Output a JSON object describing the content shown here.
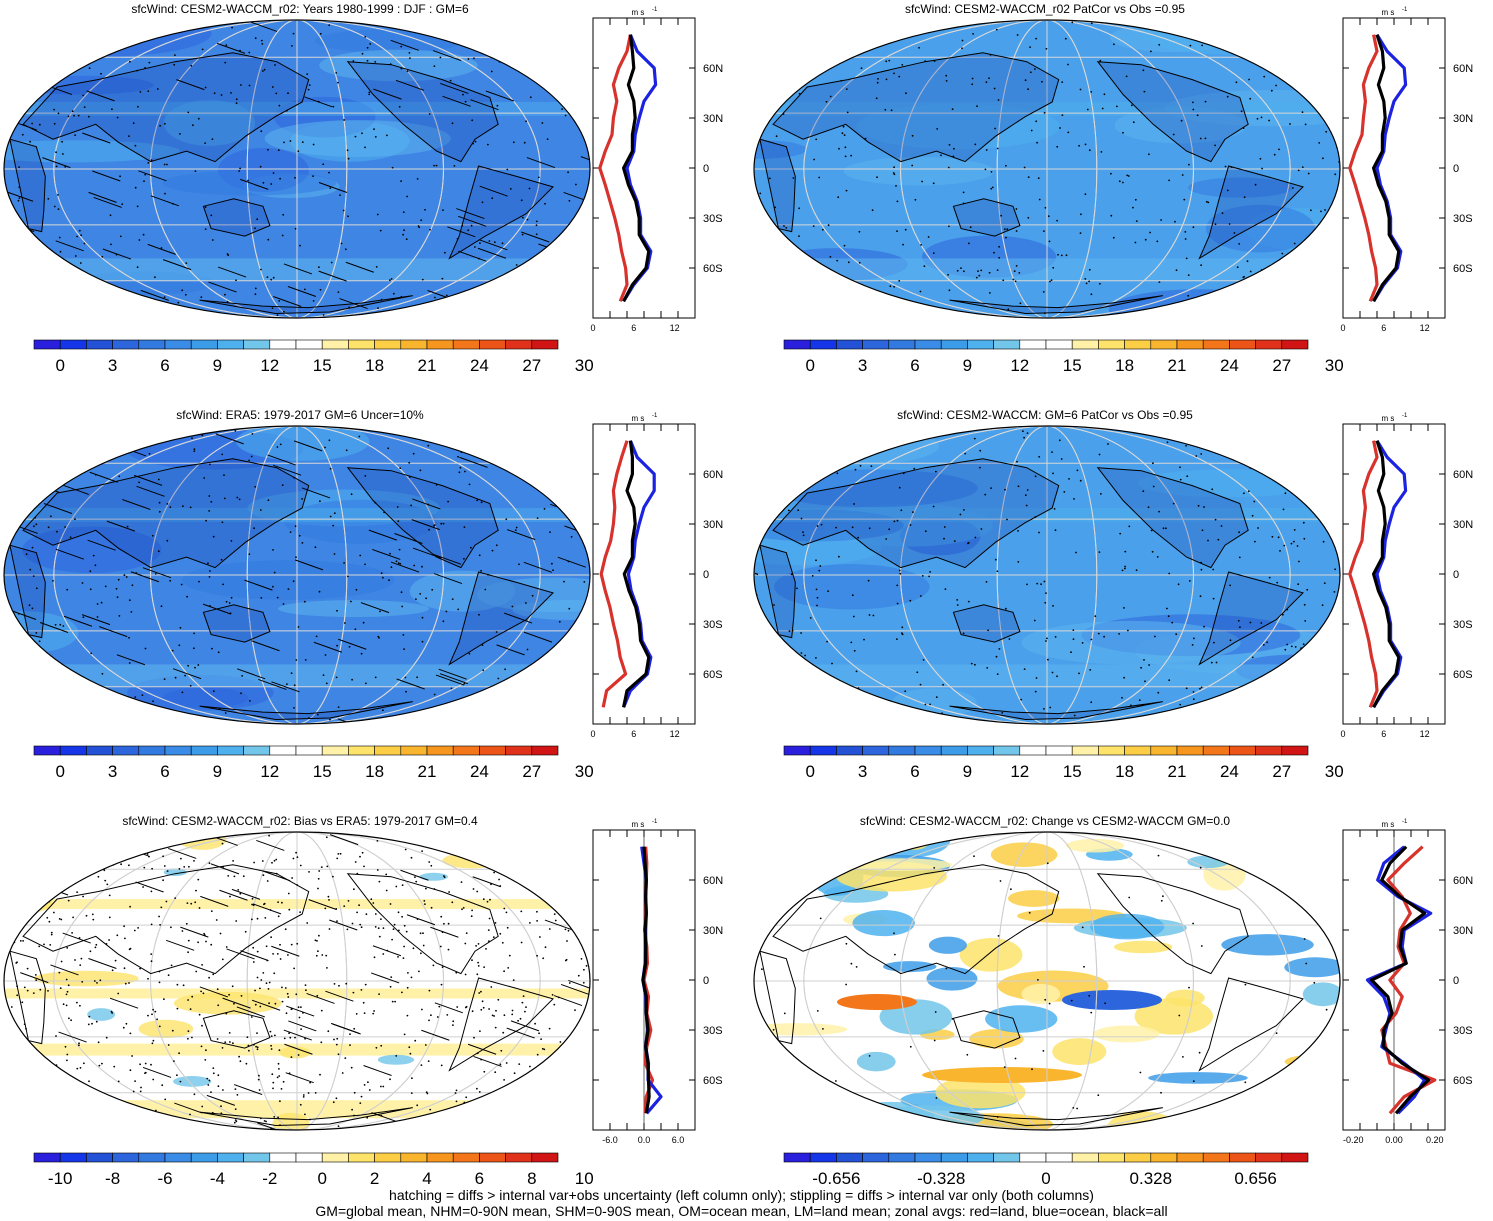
{
  "colors": {
    "abs_palette": [
      "#2a1fdc",
      "#1436e8",
      "#2452d6",
      "#2d66dc",
      "#337ae0",
      "#3a8ce6",
      "#3d9ce8",
      "#4eb1ee",
      "#72c6ea",
      "#ffffff",
      "#ffffff",
      "#fff2a8",
      "#fde36a",
      "#fcce45",
      "#fab52f",
      "#f7961f",
      "#f3771a",
      "#ec5517",
      "#e0321a",
      "#d11515"
    ],
    "diff_palette": [
      "#2a1fdc",
      "#1436e8",
      "#2452d6",
      "#2d66dc",
      "#337ae0",
      "#3a8ce6",
      "#3d9ce8",
      "#4eb1ee",
      "#72c6ea",
      "#ffffff",
      "#ffffff",
      "#fff2a8",
      "#fde36a",
      "#fcce45",
      "#fab52f",
      "#f7961f",
      "#f3771a",
      "#ec5517",
      "#e0321a",
      "#d11515"
    ],
    "land": "#d7322b",
    "ocean": "#1c23e0",
    "all": "#000000"
  },
  "panels": [
    {
      "id": "p1",
      "title": "sfcWind: CESM2-WACCM_r02: Years 1980-1999 : DJF : GM=6",
      "map_fill": "#3f86e4",
      "colorbar_labels": [
        "0",
        "3",
        "6",
        "9",
        "12",
        "15",
        "18",
        "21",
        "24",
        "27",
        "30"
      ],
      "zonal": {
        "unit": "m s",
        "unit_sup": "-1",
        "xticks": [
          "0",
          "6",
          "12"
        ],
        "xlim": [
          0,
          15
        ],
        "lat_labels": [
          "60N",
          "30N",
          "0",
          "30S",
          "60S"
        ],
        "lat": [
          80,
          70,
          60,
          50,
          40,
          30,
          20,
          10,
          0,
          -10,
          -20,
          -30,
          -40,
          -50,
          -60,
          -70,
          -80
        ],
        "land": [
          5.5,
          5.0,
          3.8,
          3.0,
          3.5,
          3.0,
          2.8,
          1.8,
          1.0,
          1.8,
          2.5,
          3.2,
          3.8,
          4.2,
          4.8,
          5.0,
          4.0
        ],
        "ocean": [
          5.5,
          6.5,
          9.0,
          9.2,
          7.5,
          6.8,
          6.2,
          6.0,
          5.0,
          5.5,
          6.5,
          7.0,
          7.0,
          8.5,
          8.0,
          6.0,
          4.5
        ],
        "all": [
          5.5,
          5.8,
          6.0,
          5.2,
          6.0,
          6.2,
          5.8,
          5.8,
          4.5,
          5.2,
          6.3,
          6.8,
          6.8,
          8.2,
          7.8,
          5.8,
          4.5
        ]
      }
    },
    {
      "id": "p2",
      "title": "sfcWind: CESM2-WACCM_r02 PatCor vs Obs =0.95",
      "map_fill": "#4aa0ea",
      "colorbar_labels": [
        "0",
        "3",
        "6",
        "9",
        "12",
        "15",
        "18",
        "21",
        "24",
        "27",
        "30"
      ],
      "zonal": {
        "unit": "m s",
        "unit_sup": "-1",
        "xticks": [
          "0",
          "6",
          "12"
        ],
        "xlim": [
          0,
          15
        ],
        "lat_labels": [
          "60N",
          "30N",
          "0",
          "30S",
          "60S"
        ],
        "lat": [
          80,
          70,
          60,
          50,
          40,
          30,
          20,
          10,
          0,
          -10,
          -20,
          -30,
          -40,
          -50,
          -60,
          -70,
          -80
        ],
        "land": [
          4.5,
          5.0,
          3.8,
          3.0,
          3.3,
          3.0,
          2.8,
          1.8,
          1.0,
          1.8,
          2.5,
          3.2,
          3.8,
          4.2,
          4.8,
          5.0,
          4.0
        ],
        "ocean": [
          5.0,
          6.5,
          9.0,
          9.2,
          7.5,
          6.8,
          6.2,
          6.0,
          5.0,
          5.5,
          6.5,
          7.0,
          7.0,
          8.5,
          8.0,
          6.0,
          4.5
        ],
        "all": [
          5.0,
          5.8,
          6.0,
          5.2,
          6.0,
          6.2,
          5.8,
          5.8,
          4.5,
          5.2,
          6.3,
          6.8,
          6.8,
          8.2,
          7.8,
          5.8,
          4.5
        ]
      }
    },
    {
      "id": "p3",
      "title": "sfcWind: ERA5: 1979-2017 GM=6 Uncer=10%",
      "map_fill": "#3f86e4",
      "colorbar_labels": [
        "0",
        "3",
        "6",
        "9",
        "12",
        "15",
        "18",
        "21",
        "24",
        "27",
        "30"
      ],
      "zonal": {
        "unit": "m s",
        "unit_sup": "-1",
        "xticks": [
          "0",
          "6",
          "12"
        ],
        "xlim": [
          0,
          15
        ],
        "lat_labels": [
          "60N",
          "30N",
          "0",
          "30S",
          "60S"
        ],
        "lat": [
          80,
          70,
          60,
          50,
          40,
          30,
          20,
          10,
          0,
          -10,
          -20,
          -30,
          -40,
          -50,
          -60,
          -70,
          -80
        ],
        "land": [
          5.0,
          4.2,
          3.5,
          3.0,
          3.2,
          3.0,
          2.6,
          1.8,
          1.2,
          1.8,
          2.5,
          3.0,
          3.6,
          4.0,
          4.8,
          2.0,
          1.5
        ],
        "ocean": [
          5.5,
          6.5,
          9.0,
          9.0,
          7.5,
          6.8,
          6.2,
          6.0,
          5.2,
          5.6,
          6.5,
          7.0,
          7.2,
          8.5,
          8.0,
          5.5,
          4.5
        ],
        "all": [
          5.5,
          5.8,
          5.8,
          5.0,
          6.0,
          6.2,
          5.8,
          5.8,
          4.6,
          5.3,
          6.3,
          6.8,
          7.0,
          8.2,
          7.8,
          5.0,
          4.5
        ]
      }
    },
    {
      "id": "p4",
      "title": "sfcWind: CESM2-WACCM: GM=6 PatCor vs Obs =0.95",
      "map_fill": "#4aa0ea",
      "colorbar_labels": [
        "0",
        "3",
        "6",
        "9",
        "12",
        "15",
        "18",
        "21",
        "24",
        "27",
        "30"
      ],
      "zonal": {
        "unit": "m s",
        "unit_sup": "-1",
        "xticks": [
          "0",
          "6",
          "12"
        ],
        "xlim": [
          0,
          15
        ],
        "lat_labels": [
          "60N",
          "30N",
          "0",
          "30S",
          "60S"
        ],
        "lat": [
          80,
          70,
          60,
          50,
          40,
          30,
          20,
          10,
          0,
          -10,
          -20,
          -30,
          -40,
          -50,
          -60,
          -70,
          -80
        ],
        "land": [
          4.5,
          5.0,
          3.8,
          3.0,
          3.3,
          3.0,
          2.8,
          1.8,
          1.0,
          1.8,
          2.5,
          3.2,
          3.8,
          4.2,
          4.8,
          5.0,
          4.0
        ],
        "ocean": [
          5.0,
          6.5,
          9.0,
          9.2,
          7.5,
          6.8,
          6.2,
          6.0,
          5.0,
          5.5,
          6.5,
          7.0,
          7.0,
          8.5,
          8.0,
          6.0,
          4.5
        ],
        "all": [
          5.0,
          5.8,
          6.0,
          5.2,
          6.0,
          6.2,
          5.8,
          5.8,
          4.5,
          5.2,
          6.3,
          6.8,
          6.8,
          8.2,
          7.8,
          5.8,
          4.5
        ]
      }
    },
    {
      "id": "p5",
      "title": "sfcWind: CESM2-WACCM_r02: Bias vs ERA5: 1979-2017 GM=0.4",
      "map_fill": "#ffffff",
      "colorbar_labels": [
        "-10",
        "-8",
        "-6",
        "-4",
        "-2",
        "0",
        "2",
        "4",
        "6",
        "8",
        "10"
      ],
      "zonal": {
        "unit": "m s",
        "unit_sup": "-1",
        "xticks": [
          "-6.0",
          "0.0",
          "6.0"
        ],
        "xlim": [
          -9,
          9
        ],
        "lat_labels": [
          "60N",
          "30N",
          "0",
          "30S",
          "60S"
        ],
        "lat": [
          80,
          70,
          60,
          50,
          40,
          30,
          20,
          10,
          0,
          -10,
          -20,
          -30,
          -40,
          -50,
          -60,
          -70,
          -80
        ],
        "land": [
          0.3,
          0.5,
          0.4,
          0.2,
          0.3,
          0.1,
          0.5,
          0.6,
          0.0,
          0.8,
          0.5,
          1.2,
          0.5,
          0.2,
          1.5,
          0.4,
          0.2
        ],
        "ocean": [
          -0.4,
          0.0,
          0.4,
          0.3,
          0.4,
          0.3,
          0.3,
          0.2,
          -0.2,
          0.3,
          0.4,
          0.6,
          0.3,
          0.8,
          0.7,
          3.0,
          0.5
        ],
        "all": [
          0.0,
          0.2,
          0.4,
          0.3,
          0.4,
          0.2,
          0.3,
          0.3,
          -0.2,
          0.4,
          0.4,
          0.7,
          0.3,
          0.7,
          0.8,
          0.9,
          0.4
        ]
      }
    },
    {
      "id": "p6",
      "title": "sfcWind: CESM2-WACCM_r02: Change vs CESM2-WACCM GM=0.0",
      "map_fill": "#ffffff",
      "colorbar_labels": [
        "-0.656",
        "-0.328",
        "0",
        "0.328",
        "0.656"
      ],
      "zonal": {
        "unit": "m s",
        "unit_sup": "-1",
        "xticks": [
          "-0.20",
          "0.00",
          "0.20"
        ],
        "xlim": [
          -0.25,
          0.25
        ],
        "lat_labels": [
          "60N",
          "30N",
          "0",
          "30S",
          "60S"
        ],
        "lat": [
          80,
          70,
          60,
          50,
          40,
          30,
          20,
          10,
          0,
          -10,
          -20,
          -30,
          -40,
          -50,
          -60,
          -70,
          -80
        ],
        "land": [
          0.14,
          0.05,
          -0.03,
          0.04,
          0.08,
          0.03,
          0.02,
          0.05,
          -0.02,
          0.04,
          0.01,
          -0.06,
          -0.04,
          -0.02,
          0.2,
          0.05,
          -0.02
        ],
        "ocean": [
          0.05,
          -0.05,
          -0.08,
          0.02,
          0.18,
          0.05,
          0.04,
          0.06,
          -0.13,
          -0.05,
          -0.02,
          -0.04,
          -0.06,
          0.05,
          0.15,
          0.1,
          0.02
        ],
        "all": [
          0.06,
          -0.02,
          -0.06,
          0.03,
          0.15,
          0.04,
          0.03,
          0.06,
          -0.11,
          -0.03,
          -0.01,
          -0.05,
          -0.05,
          0.04,
          0.17,
          0.08,
          0.01
        ]
      }
    }
  ],
  "chart_data": [
    {
      "type": "line",
      "title": "sfcWind: CESM2-WACCM_r02: Years 1980-1999 : DJF : GM=6",
      "xlabel": "m s-1",
      "ylabel": "",
      "xlim": [
        0,
        15
      ],
      "y": [
        80,
        70,
        60,
        50,
        40,
        30,
        20,
        10,
        0,
        -10,
        -20,
        -30,
        -40,
        -50,
        -60,
        -70,
        -80
      ],
      "series": [
        {
          "name": "land",
          "values": [
            5.5,
            5.0,
            3.8,
            3.0,
            3.5,
            3.0,
            2.8,
            1.8,
            1.0,
            1.8,
            2.5,
            3.2,
            3.8,
            4.2,
            4.8,
            5.0,
            4.0
          ]
        },
        {
          "name": "ocean",
          "values": [
            5.5,
            6.5,
            9.0,
            9.2,
            7.5,
            6.8,
            6.2,
            6.0,
            5.0,
            5.5,
            6.5,
            7.0,
            7.0,
            8.5,
            8.0,
            6.0,
            4.5
          ]
        },
        {
          "name": "all",
          "values": [
            5.5,
            5.8,
            6.0,
            5.2,
            6.0,
            6.2,
            5.8,
            5.8,
            4.5,
            5.2,
            6.3,
            6.8,
            6.8,
            8.2,
            7.8,
            5.8,
            4.5
          ]
        }
      ]
    },
    {
      "type": "line",
      "title": "sfcWind: CESM2-WACCM_r02 PatCor vs Obs =0.95",
      "xlabel": "m s-1",
      "ylabel": "",
      "xlim": [
        0,
        15
      ]
    },
    {
      "type": "line",
      "title": "sfcWind: ERA5: 1979-2017 GM=6 Uncer=10%",
      "xlabel": "m s-1",
      "ylabel": "",
      "xlim": [
        0,
        15
      ]
    },
    {
      "type": "line",
      "title": "sfcWind: CESM2-WACCM: GM=6 PatCor vs Obs =0.95",
      "xlabel": "m s-1",
      "ylabel": "",
      "xlim": [
        0,
        15
      ]
    },
    {
      "type": "line",
      "title": "sfcWind: CESM2-WACCM_r02: Bias vs ERA5: 1979-2017 GM=0.4",
      "xlabel": "m s-1",
      "ylabel": "",
      "xlim": [
        -9,
        9
      ]
    },
    {
      "type": "line",
      "title": "sfcWind: CESM2-WACCM_r02: Change vs CESM2-WACCM GM=0.0",
      "xlabel": "m s-1",
      "ylabel": "",
      "xlim": [
        -0.25,
        0.25
      ]
    }
  ],
  "footer": [
    "hatching = diffs > internal var+obs uncertainty (left column only); stippling = diffs > internal var only (both columns)",
    "GM=global mean, NHM=0-90N mean, SHM=0-90S mean, OM=ocean mean, LM=land mean; zonal avgs: red=land, blue=ocean, black=all"
  ]
}
